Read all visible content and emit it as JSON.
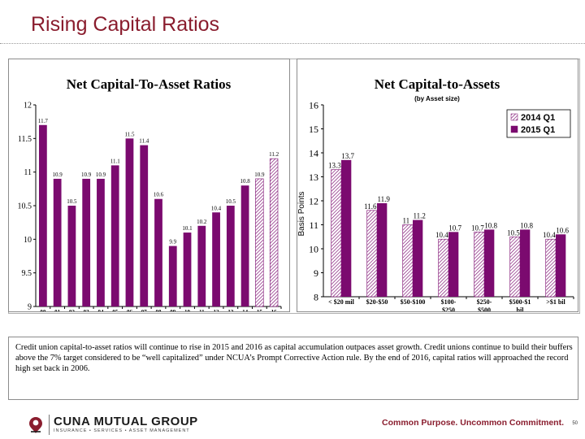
{
  "slide": {
    "title": "Rising Capital Ratios",
    "caption": "Credit union capital-to-asset ratios will continue to rise in 2015 and 2016 as capital accumulation outpaces asset growth. Credit unions continue to build their buffers above the 7% target considered to be “well capitalized” under NCUA’s Prompt Corrective Action rule. By the end of 2016, capital ratios will approached the record high set back in 2006.",
    "page_number": "50"
  },
  "footer": {
    "brand": "CUNA MUTUAL GROUP",
    "brand_sub": "INSURANCE • SERVICES • ASSET MANAGEMENT",
    "tagline": "Common Purpose. Uncommon Commitment.",
    "accent_color": "#8a1d2e"
  },
  "chart_data": [
    {
      "type": "bar",
      "title": "Net Capital-To-Asset Ratios",
      "categories": [
        "00",
        "01",
        "02",
        "03",
        "04",
        "05",
        "06",
        "07",
        "08",
        "09",
        "10",
        "11",
        "12",
        "13",
        "14",
        "15",
        "16"
      ],
      "values": [
        11.7,
        10.9,
        10.5,
        10.9,
        10.9,
        11.1,
        11.5,
        11.4,
        10.6,
        9.9,
        10.1,
        10.2,
        10.4,
        10.5,
        10.8,
        10.9,
        11.2
      ],
      "value_labels": [
        "11.7",
        "10.9",
        "10.5",
        "10.9",
        "10.9",
        "11.1",
        "11.5",
        "11.4",
        "10.6",
        "9.9",
        "10.1",
        "10.2",
        "10.4",
        "10.5",
        "10.8",
        "10.9",
        "11.2"
      ],
      "forecast_from_index": 15,
      "ylim": [
        9,
        12
      ],
      "yticks": [
        "9",
        "9.5",
        "10",
        "10.5",
        "11",
        "11.5",
        "12"
      ],
      "bar_color": "#7b0a6f",
      "grid": false
    },
    {
      "type": "bar",
      "title": "Net Capital-to-Assets",
      "subtitle": "(by Asset size)",
      "ylabel": "Basis Points",
      "categories": [
        "< $20 mil",
        "$20-$50",
        "$50-$100",
        "$100-\n$250",
        "$250-\n$500",
        "$500-$1\nbil",
        ">$1 bil"
      ],
      "series": [
        {
          "name": "2014 Q1",
          "values": [
            13.3,
            11.6,
            11,
            10.4,
            10.7,
            10.5,
            10.4
          ],
          "labels": [
            "13.3",
            "11.6",
            "11",
            "10.4",
            "10.7",
            "10.5",
            "10.4"
          ],
          "pattern": "hatched"
        },
        {
          "name": "2015 Q1",
          "values": [
            13.7,
            11.9,
            11.2,
            10.7,
            10.8,
            10.8,
            10.6
          ],
          "labels": [
            "13.7",
            "11.9",
            "11.2",
            "10.7",
            "10.8",
            "10.8",
            "10.6"
          ],
          "pattern": "solid"
        }
      ],
      "ylim": [
        8,
        16
      ],
      "yticks": [
        "8",
        "9",
        "10",
        "11",
        "12",
        "13",
        "14",
        "15",
        "16"
      ],
      "bar_color": "#7b0a6f",
      "legend": "top-right",
      "grid": false
    }
  ]
}
